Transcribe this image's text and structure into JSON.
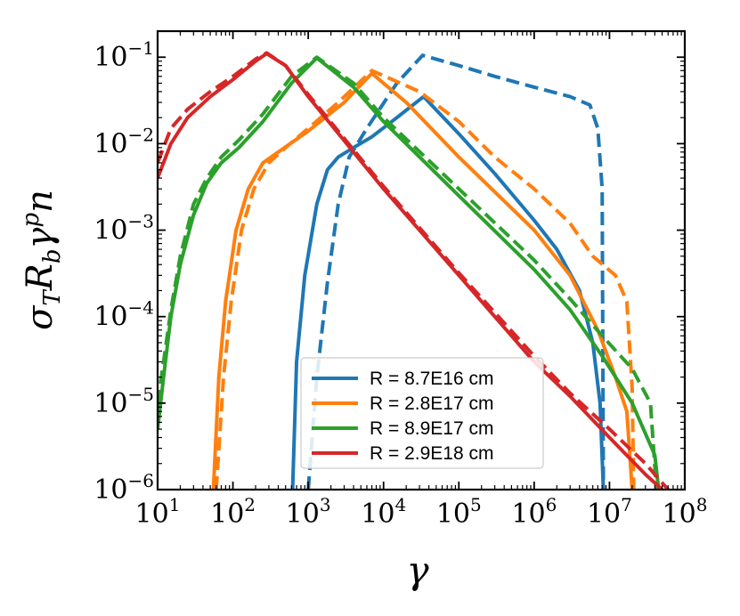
{
  "chart_data": {
    "type": "line",
    "title": "",
    "xlabel": "γ",
    "ylabel_parts": [
      "σ",
      "T",
      "R",
      "b",
      "γ",
      "p",
      "n"
    ],
    "xscale": "log",
    "yscale": "log",
    "xlim": [
      10,
      100000000
    ],
    "ylim": [
      1e-06,
      0.2
    ],
    "x_ticks": [
      {
        "base": "10",
        "exp": "1"
      },
      {
        "base": "10",
        "exp": "2"
      },
      {
        "base": "10",
        "exp": "3"
      },
      {
        "base": "10",
        "exp": "4"
      },
      {
        "base": "10",
        "exp": "5"
      },
      {
        "base": "10",
        "exp": "6"
      },
      {
        "base": "10",
        "exp": "7"
      },
      {
        "base": "10",
        "exp": "8"
      }
    ],
    "y_ticks": [
      {
        "base": "10",
        "exp": "−6"
      },
      {
        "base": "10",
        "exp": "−5"
      },
      {
        "base": "10",
        "exp": "−4"
      },
      {
        "base": "10",
        "exp": "−3"
      },
      {
        "base": "10",
        "exp": "−2"
      },
      {
        "base": "10",
        "exp": "−1"
      }
    ],
    "legend_position": "lower-center",
    "series": [
      {
        "name": "R = 8.7E16 cm",
        "color": "#1f77b4",
        "solid": [
          [
            620,
            1e-06
          ],
          [
            700,
            3e-05
          ],
          [
            900,
            0.0003
          ],
          [
            1300,
            0.002
          ],
          [
            1800,
            0.005
          ],
          [
            2500,
            0.007
          ],
          [
            4000,
            0.009
          ],
          [
            7000,
            0.012
          ],
          [
            15000,
            0.02
          ],
          [
            34000,
            0.035
          ],
          [
            100000,
            0.013
          ],
          [
            300000,
            0.0045
          ],
          [
            1000000,
            0.0013
          ],
          [
            2000000,
            0.0006
          ],
          [
            4000000,
            0.0002
          ],
          [
            6000000,
            5e-05
          ],
          [
            7500000,
            1e-05
          ],
          [
            8300000,
            1e-06
          ]
        ],
        "dashed": [
          [
            1000,
            1e-06
          ],
          [
            1300,
            2e-05
          ],
          [
            1800,
            0.00025
          ],
          [
            2500,
            0.002
          ],
          [
            3500,
            0.007
          ],
          [
            6000,
            0.015
          ],
          [
            15000,
            0.05
          ],
          [
            33000,
            0.105
          ],
          [
            100000,
            0.08
          ],
          [
            300000,
            0.06
          ],
          [
            1000000,
            0.045
          ],
          [
            3000000,
            0.035
          ],
          [
            5500000,
            0.028
          ],
          [
            7000000,
            0.015
          ],
          [
            8000000,
            0.003
          ],
          [
            8300000,
            1e-06
          ]
        ]
      },
      {
        "name": "R = 2.8E17 cm",
        "color": "#ff7f0e",
        "solid": [
          [
            55,
            1e-06
          ],
          [
            65,
            2e-05
          ],
          [
            80,
            0.00015
          ],
          [
            110,
            0.001
          ],
          [
            160,
            0.003
          ],
          [
            250,
            0.006
          ],
          [
            400,
            0.008
          ],
          [
            1000,
            0.014
          ],
          [
            3000,
            0.03
          ],
          [
            7000,
            0.065
          ],
          [
            20000,
            0.03
          ],
          [
            100000,
            0.007
          ],
          [
            1000000,
            0.001
          ],
          [
            3000000,
            0.0003
          ],
          [
            7000000,
            7e-05
          ],
          [
            12000000,
            2e-05
          ],
          [
            17000000,
            8e-06
          ],
          [
            20000000,
            1e-06
          ]
        ],
        "dashed": [
          [
            60,
            1e-06
          ],
          [
            75,
            2e-05
          ],
          [
            95,
            0.00015
          ],
          [
            130,
            0.001
          ],
          [
            190,
            0.003
          ],
          [
            300,
            0.006
          ],
          [
            500,
            0.009
          ],
          [
            1000,
            0.015
          ],
          [
            2500,
            0.03
          ],
          [
            7000,
            0.07
          ],
          [
            30000,
            0.04
          ],
          [
            100000,
            0.018
          ],
          [
            300000,
            0.007
          ],
          [
            1000000,
            0.003
          ],
          [
            3000000,
            0.0012
          ],
          [
            6000000,
            0.0005
          ],
          [
            12000000,
            0.0003
          ],
          [
            17000000,
            0.00015
          ],
          [
            20000000,
            1.5e-05
          ],
          [
            21000000,
            1e-06
          ]
        ]
      },
      {
        "name": "R = 8.9E17 cm",
        "color": "#2ca02c",
        "solid": [
          [
            10,
            5e-06
          ],
          [
            12,
            2e-05
          ],
          [
            15,
            0.0001
          ],
          [
            20,
            0.0004
          ],
          [
            30,
            0.0015
          ],
          [
            45,
            0.0035
          ],
          [
            70,
            0.006
          ],
          [
            120,
            0.009
          ],
          [
            250,
            0.018
          ],
          [
            600,
            0.05
          ],
          [
            1300,
            0.098
          ],
          [
            4000,
            0.045
          ],
          [
            10000,
            0.018
          ],
          [
            100000,
            0.0025
          ],
          [
            1000000,
            0.00035
          ],
          [
            3000000,
            0.00012
          ],
          [
            8000000,
            3.5e-05
          ],
          [
            20000000,
            1e-05
          ],
          [
            40000000,
            2.5e-06
          ],
          [
            45000000,
            1e-06
          ]
        ],
        "dashed": [
          [
            10,
            1e-05
          ],
          [
            12,
            3e-05
          ],
          [
            15,
            0.00012
          ],
          [
            20,
            0.0005
          ],
          [
            30,
            0.002
          ],
          [
            45,
            0.004
          ],
          [
            70,
            0.007
          ],
          [
            120,
            0.011
          ],
          [
            250,
            0.022
          ],
          [
            600,
            0.06
          ],
          [
            1300,
            0.1
          ],
          [
            4000,
            0.05
          ],
          [
            10000,
            0.02
          ],
          [
            100000,
            0.003
          ],
          [
            1000000,
            0.00045
          ],
          [
            3000000,
            0.00016
          ],
          [
            8000000,
            6e-05
          ],
          [
            20000000,
            2.5e-05
          ],
          [
            35000000,
            1e-05
          ],
          [
            42000000,
            1e-06
          ]
        ]
      },
      {
        "name": "R = 2.9E18 cm",
        "color": "#d62728",
        "solid": [
          [
            10,
            0.004
          ],
          [
            15,
            0.01
          ],
          [
            25,
            0.02
          ],
          [
            50,
            0.035
          ],
          [
            100,
            0.055
          ],
          [
            200,
            0.09
          ],
          [
            280,
            0.11
          ],
          [
            500,
            0.08
          ],
          [
            1000,
            0.035
          ],
          [
            10000,
            0.003
          ],
          [
            100000,
            0.0003
          ],
          [
            1000000,
            3e-05
          ],
          [
            3000000,
            1.2e-05
          ],
          [
            10000000,
            4e-06
          ],
          [
            30000000,
            1.5e-06
          ],
          [
            50000000,
            1e-06
          ]
        ],
        "dashed": [
          [
            10,
            0.006
          ],
          [
            15,
            0.015
          ],
          [
            25,
            0.025
          ],
          [
            50,
            0.04
          ],
          [
            100,
            0.06
          ],
          [
            200,
            0.095
          ],
          [
            280,
            0.112
          ],
          [
            500,
            0.08
          ],
          [
            1000,
            0.037
          ],
          [
            10000,
            0.0032
          ],
          [
            100000,
            0.00032
          ],
          [
            1000000,
            3.5e-05
          ],
          [
            3000000,
            1.3e-05
          ],
          [
            10000000,
            5e-06
          ],
          [
            30000000,
            2e-06
          ],
          [
            60000000,
            1e-06
          ]
        ]
      }
    ]
  }
}
